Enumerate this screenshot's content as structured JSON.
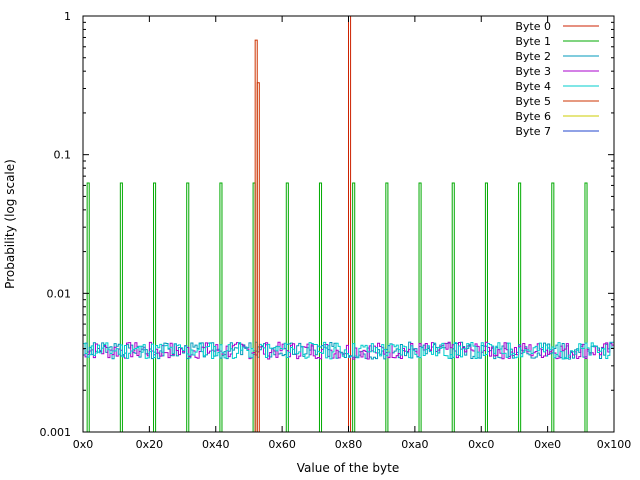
{
  "chart_data": {
    "type": "line",
    "xlabel": "Value of the byte",
    "ylabel": "Probability (log scale)",
    "x_scale": "linear",
    "y_scale": "log",
    "xlim": [
      0,
      256
    ],
    "ylim": [
      0.001,
      1
    ],
    "grid": false,
    "legend_position": "top-right",
    "x_ticks": [
      {
        "value": 0,
        "label": "0x0"
      },
      {
        "value": 32,
        "label": "0x20"
      },
      {
        "value": 64,
        "label": "0x40"
      },
      {
        "value": 96,
        "label": "0x60"
      },
      {
        "value": 128,
        "label": "0x80"
      },
      {
        "value": 160,
        "label": "0xa0"
      },
      {
        "value": 192,
        "label": "0xc0"
      },
      {
        "value": 224,
        "label": "0xe0"
      },
      {
        "value": 256,
        "label": "0x100"
      }
    ],
    "y_ticks": [
      {
        "value": 1,
        "label": "1"
      },
      {
        "value": 0.1,
        "label": "0.1"
      },
      {
        "value": 0.01,
        "label": "0.01"
      },
      {
        "value": 0.001,
        "label": "0.001"
      }
    ],
    "series": [
      {
        "name": "Byte 0",
        "color": "#cc2200",
        "shape": "spikes",
        "points": [
          {
            "x": 128,
            "y": 1.0
          }
        ]
      },
      {
        "name": "Byte 1",
        "color": "#00aa00",
        "shape": "spikes",
        "points": [
          {
            "x": 2,
            "y": 0.0625
          },
          {
            "x": 18,
            "y": 0.0625
          },
          {
            "x": 34,
            "y": 0.0625
          },
          {
            "x": 50,
            "y": 0.0625
          },
          {
            "x": 66,
            "y": 0.0625
          },
          {
            "x": 82,
            "y": 0.0625
          },
          {
            "x": 98,
            "y": 0.0625
          },
          {
            "x": 114,
            "y": 0.0625
          },
          {
            "x": 130,
            "y": 0.0625
          },
          {
            "x": 146,
            "y": 0.0625
          },
          {
            "x": 162,
            "y": 0.0625
          },
          {
            "x": 178,
            "y": 0.0625
          },
          {
            "x": 194,
            "y": 0.0625
          },
          {
            "x": 210,
            "y": 0.0625
          },
          {
            "x": 226,
            "y": 0.0625
          },
          {
            "x": 242,
            "y": 0.0625
          }
        ]
      },
      {
        "name": "Byte 2",
        "color": "#0099bb",
        "shape": "noise",
        "level": 0.0039,
        "seed": 3
      },
      {
        "name": "Byte 3",
        "color": "#aa00cc",
        "shape": "noise",
        "level": 0.0039,
        "seed": 7
      },
      {
        "name": "Byte 4",
        "color": "#00cccc",
        "shape": "noise",
        "level": 0.0039,
        "seed": 11
      },
      {
        "name": "Byte 5",
        "color": "#cc3300",
        "shape": "spikes",
        "points": [
          {
            "x": 83,
            "y": 0.67
          },
          {
            "x": 84,
            "y": 0.33
          }
        ]
      },
      {
        "name": "Byte 6",
        "color": "#cccc00",
        "shape": "spikes",
        "points": []
      },
      {
        "name": "Byte 7",
        "color": "#2244cc",
        "shape": "spikes",
        "points": []
      }
    ]
  }
}
